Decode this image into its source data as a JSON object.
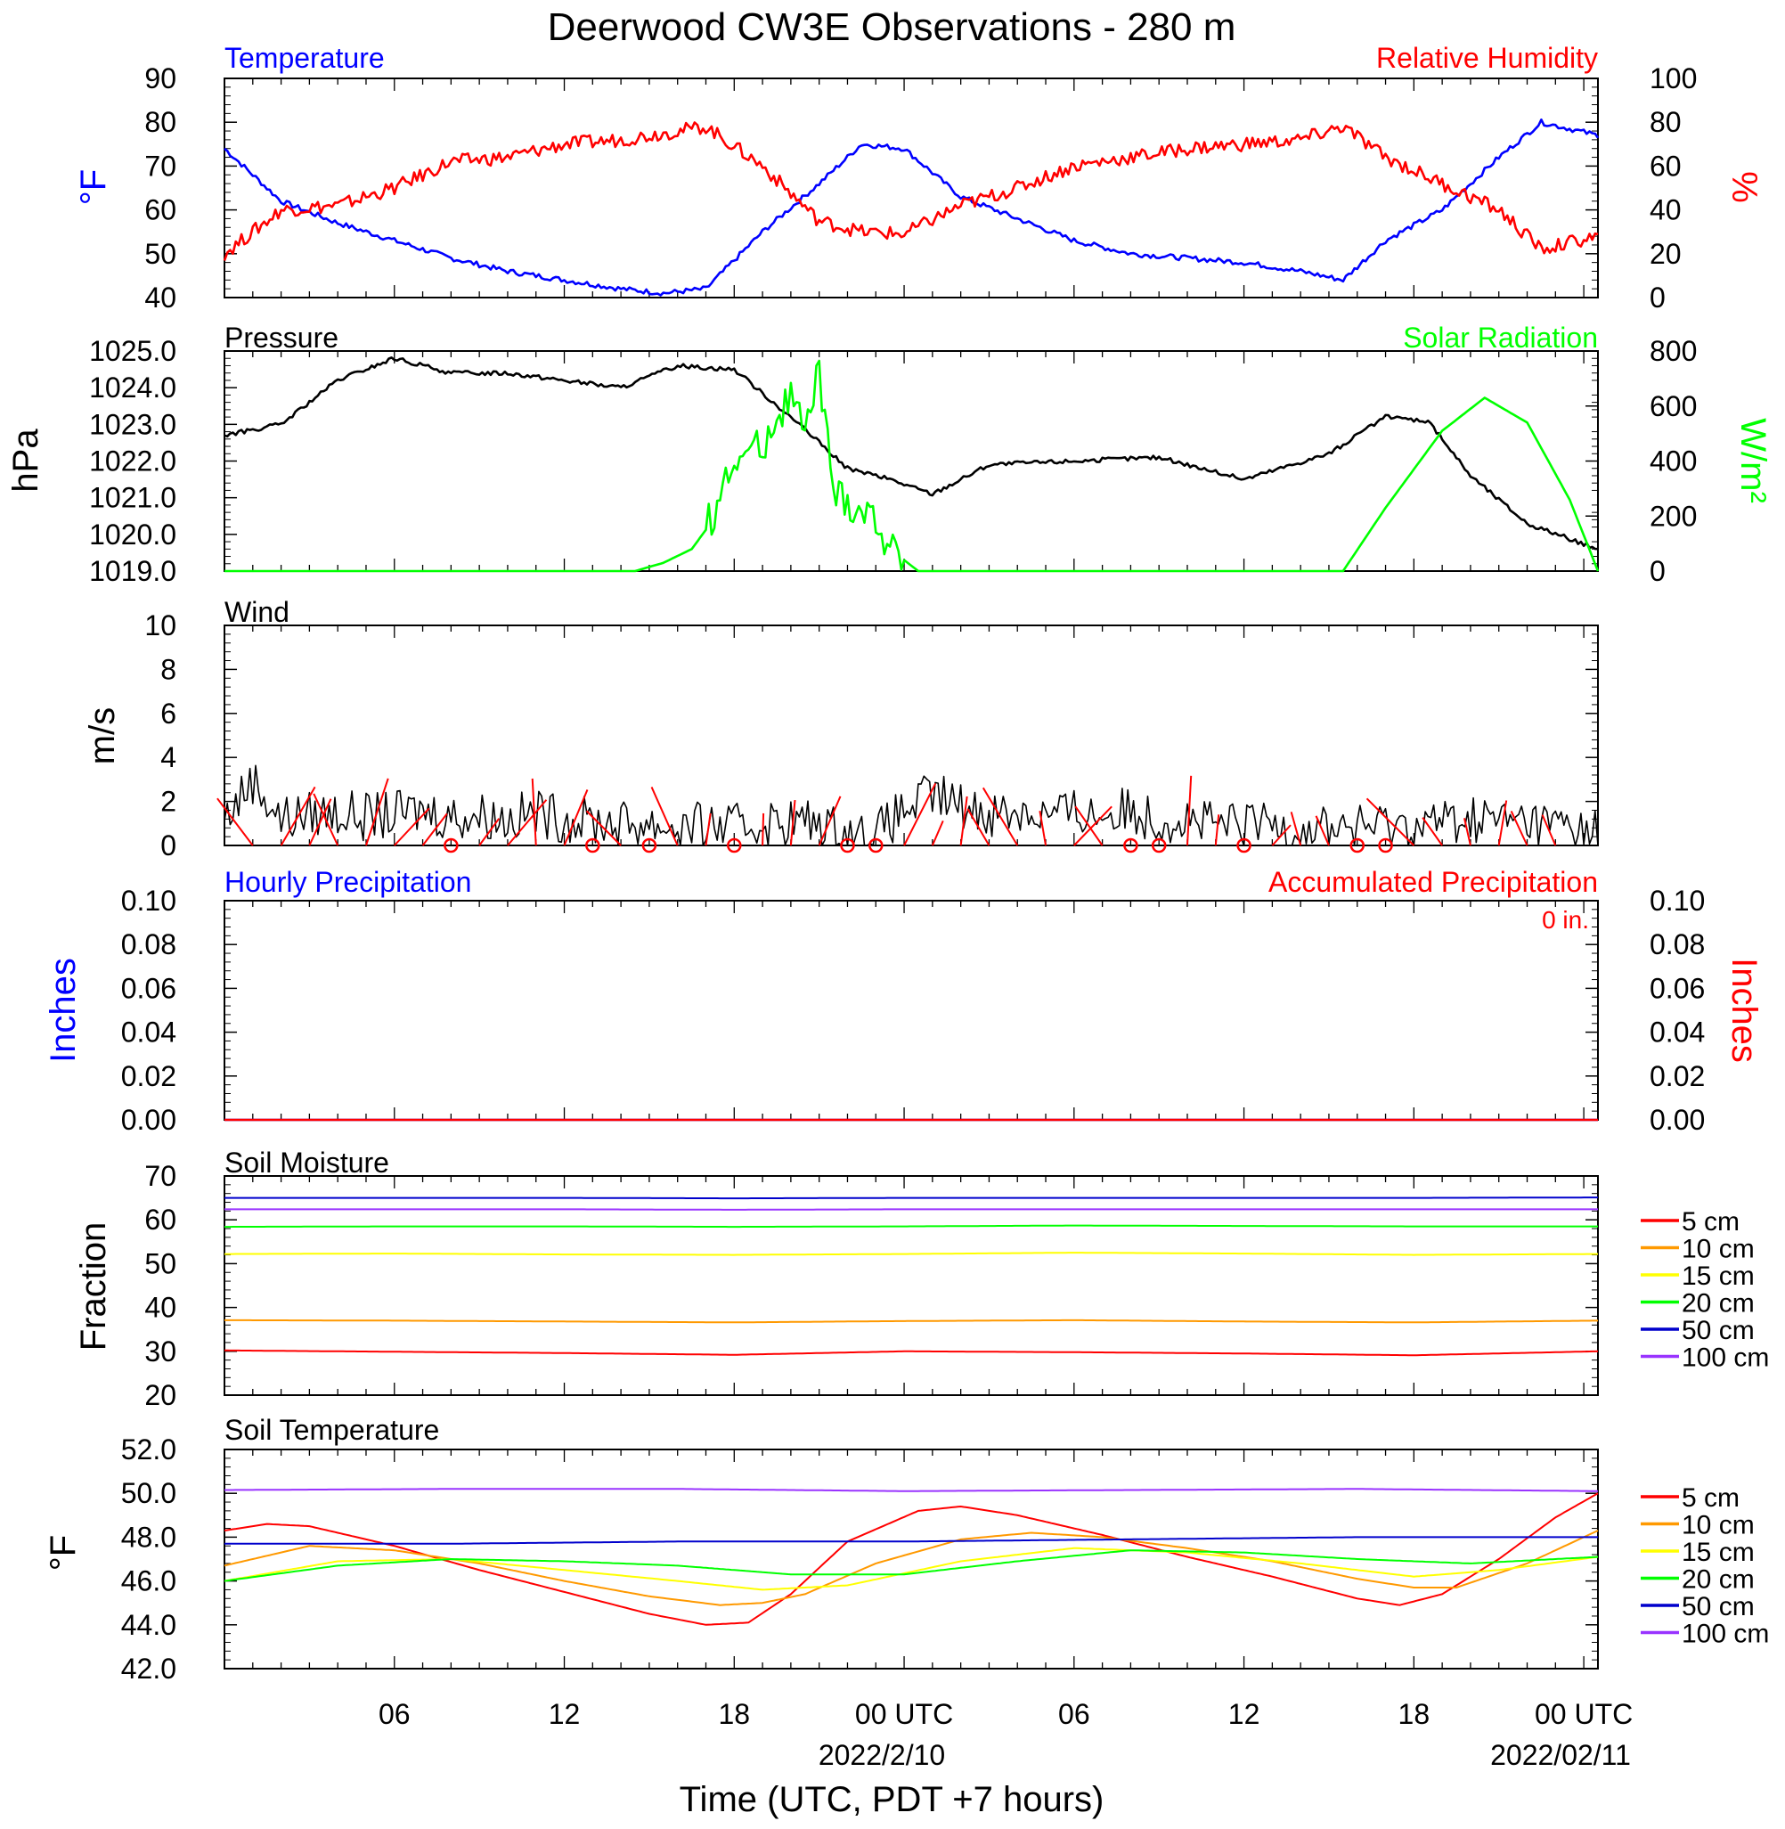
{
  "figure": {
    "title": "Deerwood CW3E Observations - 280 m",
    "xlabel": "Time (UTC, PDT +7 hours)"
  },
  "x_axis": {
    "tick_labels": [
      "06",
      "12",
      "18",
      "00 UTC",
      "06",
      "12",
      "18",
      "00 UTC"
    ],
    "date_labels": [
      "2022/2/10",
      "2022/02/11"
    ]
  },
  "colors": {
    "blue": "#0000ff",
    "red": "#ff0000",
    "black": "#000000",
    "green": "#00ff00",
    "orange": "#ff9900",
    "yellow": "#ffff00",
    "purple": "#9933ff",
    "navy": "#0000cc"
  },
  "chart_data": [
    {
      "id": "temp_rh",
      "type": "line",
      "title_left": "Temperature",
      "title_right": "Relative Humidity",
      "ylabel_left": "°F",
      "ylabel_right": "%",
      "ylim_left": [
        40,
        90
      ],
      "ylim_right": [
        0,
        100
      ],
      "yticks_left": [
        "90",
        "80",
        "70",
        "60",
        "50",
        "40"
      ],
      "yticks_right": [
        "100",
        "80",
        "60",
        "40",
        "20",
        "0"
      ],
      "x_hours": [
        0,
        2,
        4,
        6,
        8,
        10,
        12,
        14,
        15.5,
        17,
        19,
        21,
        22.5,
        24,
        26,
        28,
        30,
        32,
        34,
        36,
        38,
        39.5,
        41,
        43,
        45,
        46.5,
        48.5
      ],
      "series": [
        {
          "name": "Temperature",
          "axis": "left",
          "color": "#0000ff",
          "values": [
            74,
            62,
            57,
            53,
            49,
            46,
            44,
            42,
            41,
            42,
            55,
            66,
            75,
            74,
            63,
            58,
            53,
            50,
            49,
            48,
            46,
            44,
            53,
            60,
            72,
            80,
            77
          ]
        },
        {
          "name": "Relative Humidity",
          "axis": "right",
          "color": "#ff0000",
          "values": [
            20,
            40,
            42,
            50,
            62,
            64,
            70,
            72,
            75,
            78,
            60,
            35,
            30,
            29,
            42,
            50,
            60,
            64,
            68,
            70,
            72,
            78,
            64,
            52,
            40,
            22,
            28
          ]
        }
      ]
    },
    {
      "id": "pressure_solar",
      "type": "line",
      "title_left": "Pressure",
      "title_right": "Solar Radiation",
      "ylabel_left": "hPa",
      "ylabel_right": "W/m²",
      "ylim_left": [
        1019,
        1025
      ],
      "ylim_right": [
        0,
        800
      ],
      "yticks_left": [
        "1025.0",
        "1024.0",
        "1023.0",
        "1022.0",
        "1021.0",
        "1020.0",
        "1019.0"
      ],
      "yticks_right": [
        "800",
        "600",
        "400",
        "200",
        "0"
      ],
      "series": [
        {
          "name": "Pressure",
          "axis": "left",
          "color": "#000000",
          "x_hours": [
            0,
            2,
            4,
            6,
            8,
            10,
            12,
            14,
            16,
            18,
            20,
            22,
            23.5,
            25,
            27,
            30,
            33,
            36,
            39,
            41,
            42.5,
            44,
            46,
            48.5
          ],
          "values": [
            1022.7,
            1023.0,
            1024.2,
            1024.8,
            1024.4,
            1024.4,
            1024.2,
            1024.0,
            1024.6,
            1024.5,
            1023.2,
            1021.8,
            1021.5,
            1021.1,
            1021.9,
            1022.0,
            1022.1,
            1021.5,
            1022.2,
            1023.2,
            1023.1,
            1021.6,
            1020.3,
            1019.6
          ]
        },
        {
          "name": "Solar Radiation",
          "axis": "right",
          "color": "#00ff00",
          "x_hours": [
            0,
            14.5,
            15.5,
            16.5,
            17,
            18,
            19,
            19.5,
            20,
            20.5,
            21,
            21.5,
            22,
            23,
            23.5,
            24.5,
            25,
            27,
            38.5,
            39.5,
            41,
            43,
            44.5,
            46,
            47.5,
            48.5
          ],
          "values": [
            0,
            0,
            30,
            80,
            150,
            400,
            460,
            560,
            650,
            500,
            730,
            290,
            250,
            190,
            80,
            0,
            0,
            0,
            0,
            0,
            230,
            510,
            630,
            540,
            260,
            0
          ]
        }
      ]
    },
    {
      "id": "wind",
      "type": "line",
      "title_left": "Wind",
      "ylabel_left": "m/s",
      "ylim_left": [
        0,
        10
      ],
      "yticks_left": [
        "10",
        "8",
        "6",
        "4",
        "2",
        "0"
      ],
      "calm_markers_hours": [
        8,
        13,
        15,
        18,
        22,
        23,
        32,
        33,
        36,
        40,
        41
      ],
      "series": [
        {
          "name": "Wind",
          "axis": "left",
          "color": "#000000",
          "x_hours": [
            0,
            1,
            2,
            3,
            4,
            5,
            6,
            7,
            8,
            9,
            10,
            11,
            12,
            13,
            14,
            15,
            16,
            17,
            18,
            19,
            20,
            21,
            22,
            23,
            24,
            25,
            26,
            27,
            28,
            29,
            30,
            31,
            32,
            33,
            34,
            35,
            36,
            37,
            38,
            39,
            40,
            41,
            42,
            43,
            44,
            45,
            46,
            47,
            48.5
          ],
          "values": [
            1.2,
            3.0,
            1.2,
            1.4,
            1.5,
            1.3,
            1.4,
            1.6,
            1.3,
            1.4,
            1.2,
            1.5,
            1.2,
            1.1,
            1.0,
            1.0,
            0.8,
            0.9,
            0.8,
            1.0,
            1.1,
            1.0,
            0.5,
            0.5,
            1.6,
            2.3,
            1.8,
            1.5,
            1.6,
            1.4,
            1.5,
            1.4,
            1.6,
            1.2,
            1.2,
            0.9,
            0.9,
            1.0,
            0.8,
            0.9,
            0.8,
            0.9,
            1.0,
            1.1,
            1.2,
            1.2,
            1.1,
            1.0,
            0.6
          ]
        }
      ]
    },
    {
      "id": "precip",
      "type": "line",
      "title_left": "Hourly Precipitation",
      "title_right": "Accumulated Precipitation",
      "annotation": "0 in.",
      "ylabel_left": "Inches",
      "ylabel_right": "Inches",
      "ylim_left": [
        0,
        0.1
      ],
      "ylim_right": [
        0,
        0.1
      ],
      "yticks_left": [
        "0.10",
        "0.08",
        "0.06",
        "0.04",
        "0.02",
        "0.00"
      ],
      "yticks_right": [
        "0.10",
        "0.08",
        "0.06",
        "0.04",
        "0.02",
        "0.00"
      ],
      "series": [
        {
          "name": "Hourly Precipitation",
          "axis": "left",
          "color": "#0000ff",
          "x_hours": [
            0,
            48.5
          ],
          "values": [
            0,
            0
          ]
        },
        {
          "name": "Accumulated Precipitation",
          "axis": "right",
          "color": "#ff0000",
          "x_hours": [
            0,
            48.5
          ],
          "values": [
            0,
            0
          ]
        }
      ]
    },
    {
      "id": "soil_moisture",
      "type": "line",
      "title_left": "Soil Moisture",
      "ylabel_left": "Fraction",
      "ylim_left": [
        20,
        70
      ],
      "yticks_left": [
        "70",
        "60",
        "50",
        "40",
        "30",
        "20"
      ],
      "legend": "right",
      "x_hours": [
        0,
        6,
        12,
        18,
        24,
        30,
        36,
        42,
        48.5
      ],
      "series": [
        {
          "name": "5 cm",
          "color": "#ff0000",
          "values": [
            30.2,
            29.9,
            29.6,
            29.2,
            30.0,
            29.8,
            29.5,
            29.1,
            30.0
          ]
        },
        {
          "name": "10 cm",
          "color": "#ff9900",
          "values": [
            37.1,
            37.0,
            36.8,
            36.6,
            36.9,
            37.1,
            36.8,
            36.6,
            37.0
          ]
        },
        {
          "name": "15 cm",
          "color": "#ffff00",
          "values": [
            52.2,
            52.3,
            52.1,
            52.0,
            52.2,
            52.5,
            52.3,
            52.0,
            52.2
          ]
        },
        {
          "name": "20 cm",
          "color": "#00ff00",
          "values": [
            58.4,
            58.5,
            58.5,
            58.4,
            58.5,
            58.7,
            58.6,
            58.5,
            58.5
          ]
        },
        {
          "name": "50 cm",
          "color": "#0000cc",
          "values": [
            65.0,
            65.0,
            65.0,
            64.9,
            65.0,
            65.0,
            65.0,
            65.0,
            65.1
          ]
        },
        {
          "name": "100 cm",
          "color": "#9933ff",
          "values": [
            62.4,
            62.4,
            62.4,
            62.3,
            62.4,
            62.4,
            62.4,
            62.4,
            62.4
          ]
        }
      ]
    },
    {
      "id": "soil_temperature",
      "type": "line",
      "title_left": "Soil Temperature",
      "ylabel_left": "°F",
      "ylim_left": [
        42,
        52
      ],
      "yticks_left": [
        "52.0",
        "50.0",
        "48.0",
        "46.0",
        "44.0",
        "42.0"
      ],
      "legend": "right",
      "series": [
        {
          "name": "5 cm",
          "color": "#ff0000",
          "x_hours": [
            0,
            1.5,
            3,
            6,
            9,
            12,
            15,
            17,
            18.5,
            20,
            22,
            24.5,
            26,
            28,
            31,
            34,
            37,
            40,
            41.5,
            43,
            45,
            47,
            48.5
          ],
          "values": [
            48.3,
            48.6,
            48.5,
            47.6,
            46.5,
            45.5,
            44.5,
            44.0,
            44.1,
            45.4,
            47.8,
            49.2,
            49.4,
            49.0,
            48.1,
            47.1,
            46.2,
            45.2,
            44.9,
            45.4,
            47.0,
            48.9,
            50.0
          ]
        },
        {
          "name": "10 cm",
          "color": "#ff9900",
          "x_hours": [
            0,
            3,
            6,
            9,
            12,
            15,
            17.5,
            19,
            20.5,
            23,
            26,
            28.5,
            31,
            34,
            37,
            40,
            42,
            43.5,
            46,
            48.5
          ],
          "values": [
            46.7,
            47.6,
            47.4,
            46.8,
            46.0,
            45.3,
            44.9,
            45.0,
            45.4,
            46.8,
            47.9,
            48.2,
            48.0,
            47.5,
            46.9,
            46.1,
            45.7,
            45.7,
            46.8,
            48.3
          ]
        },
        {
          "name": "15 cm",
          "color": "#ffff00",
          "x_hours": [
            0,
            4,
            8,
            12,
            16,
            19,
            22,
            26,
            30,
            34,
            38,
            42,
            45,
            48.5
          ],
          "values": [
            46.0,
            46.9,
            47.0,
            46.5,
            46.0,
            45.6,
            45.8,
            46.9,
            47.5,
            47.3,
            46.8,
            46.2,
            46.5,
            47.1
          ]
        },
        {
          "name": "20 cm",
          "color": "#00ff00",
          "x_hours": [
            0,
            4,
            8,
            12,
            16,
            20,
            24,
            28,
            32,
            36,
            40,
            44,
            48.5
          ],
          "values": [
            46.0,
            46.7,
            47.0,
            46.9,
            46.7,
            46.3,
            46.3,
            46.9,
            47.4,
            47.3,
            47.0,
            46.8,
            47.1
          ]
        },
        {
          "name": "50 cm",
          "color": "#0000cc",
          "x_hours": [
            0,
            8,
            16,
            24,
            32,
            40,
            48.5
          ],
          "values": [
            47.7,
            47.7,
            47.8,
            47.8,
            47.9,
            48.0,
            48.0
          ]
        },
        {
          "name": "100 cm",
          "color": "#9933ff",
          "x_hours": [
            0,
            8,
            16,
            24,
            32,
            40,
            48.5
          ],
          "values": [
            50.15,
            50.2,
            50.2,
            50.1,
            50.15,
            50.2,
            50.1
          ]
        }
      ]
    }
  ]
}
